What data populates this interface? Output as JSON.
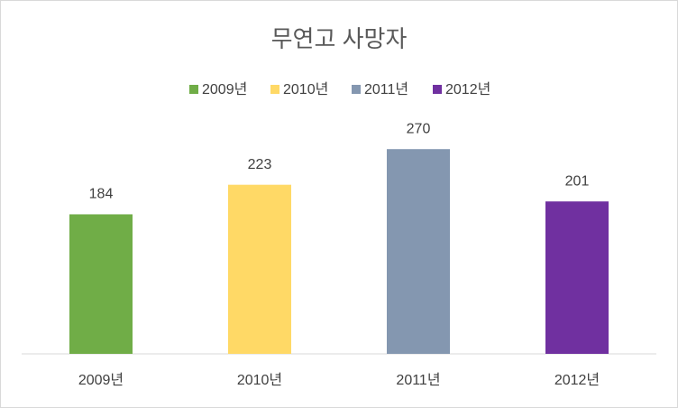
{
  "chart_data": {
    "type": "bar",
    "title": "무연고 사망자",
    "categories": [
      "2009년",
      "2010년",
      "2011년",
      "2012년"
    ],
    "values": [
      184,
      223,
      270,
      201
    ],
    "colors": [
      "#70ad47",
      "#ffd966",
      "#8497b0",
      "#7030a0"
    ],
    "ylim": [
      0,
      300
    ],
    "legend": "top"
  }
}
